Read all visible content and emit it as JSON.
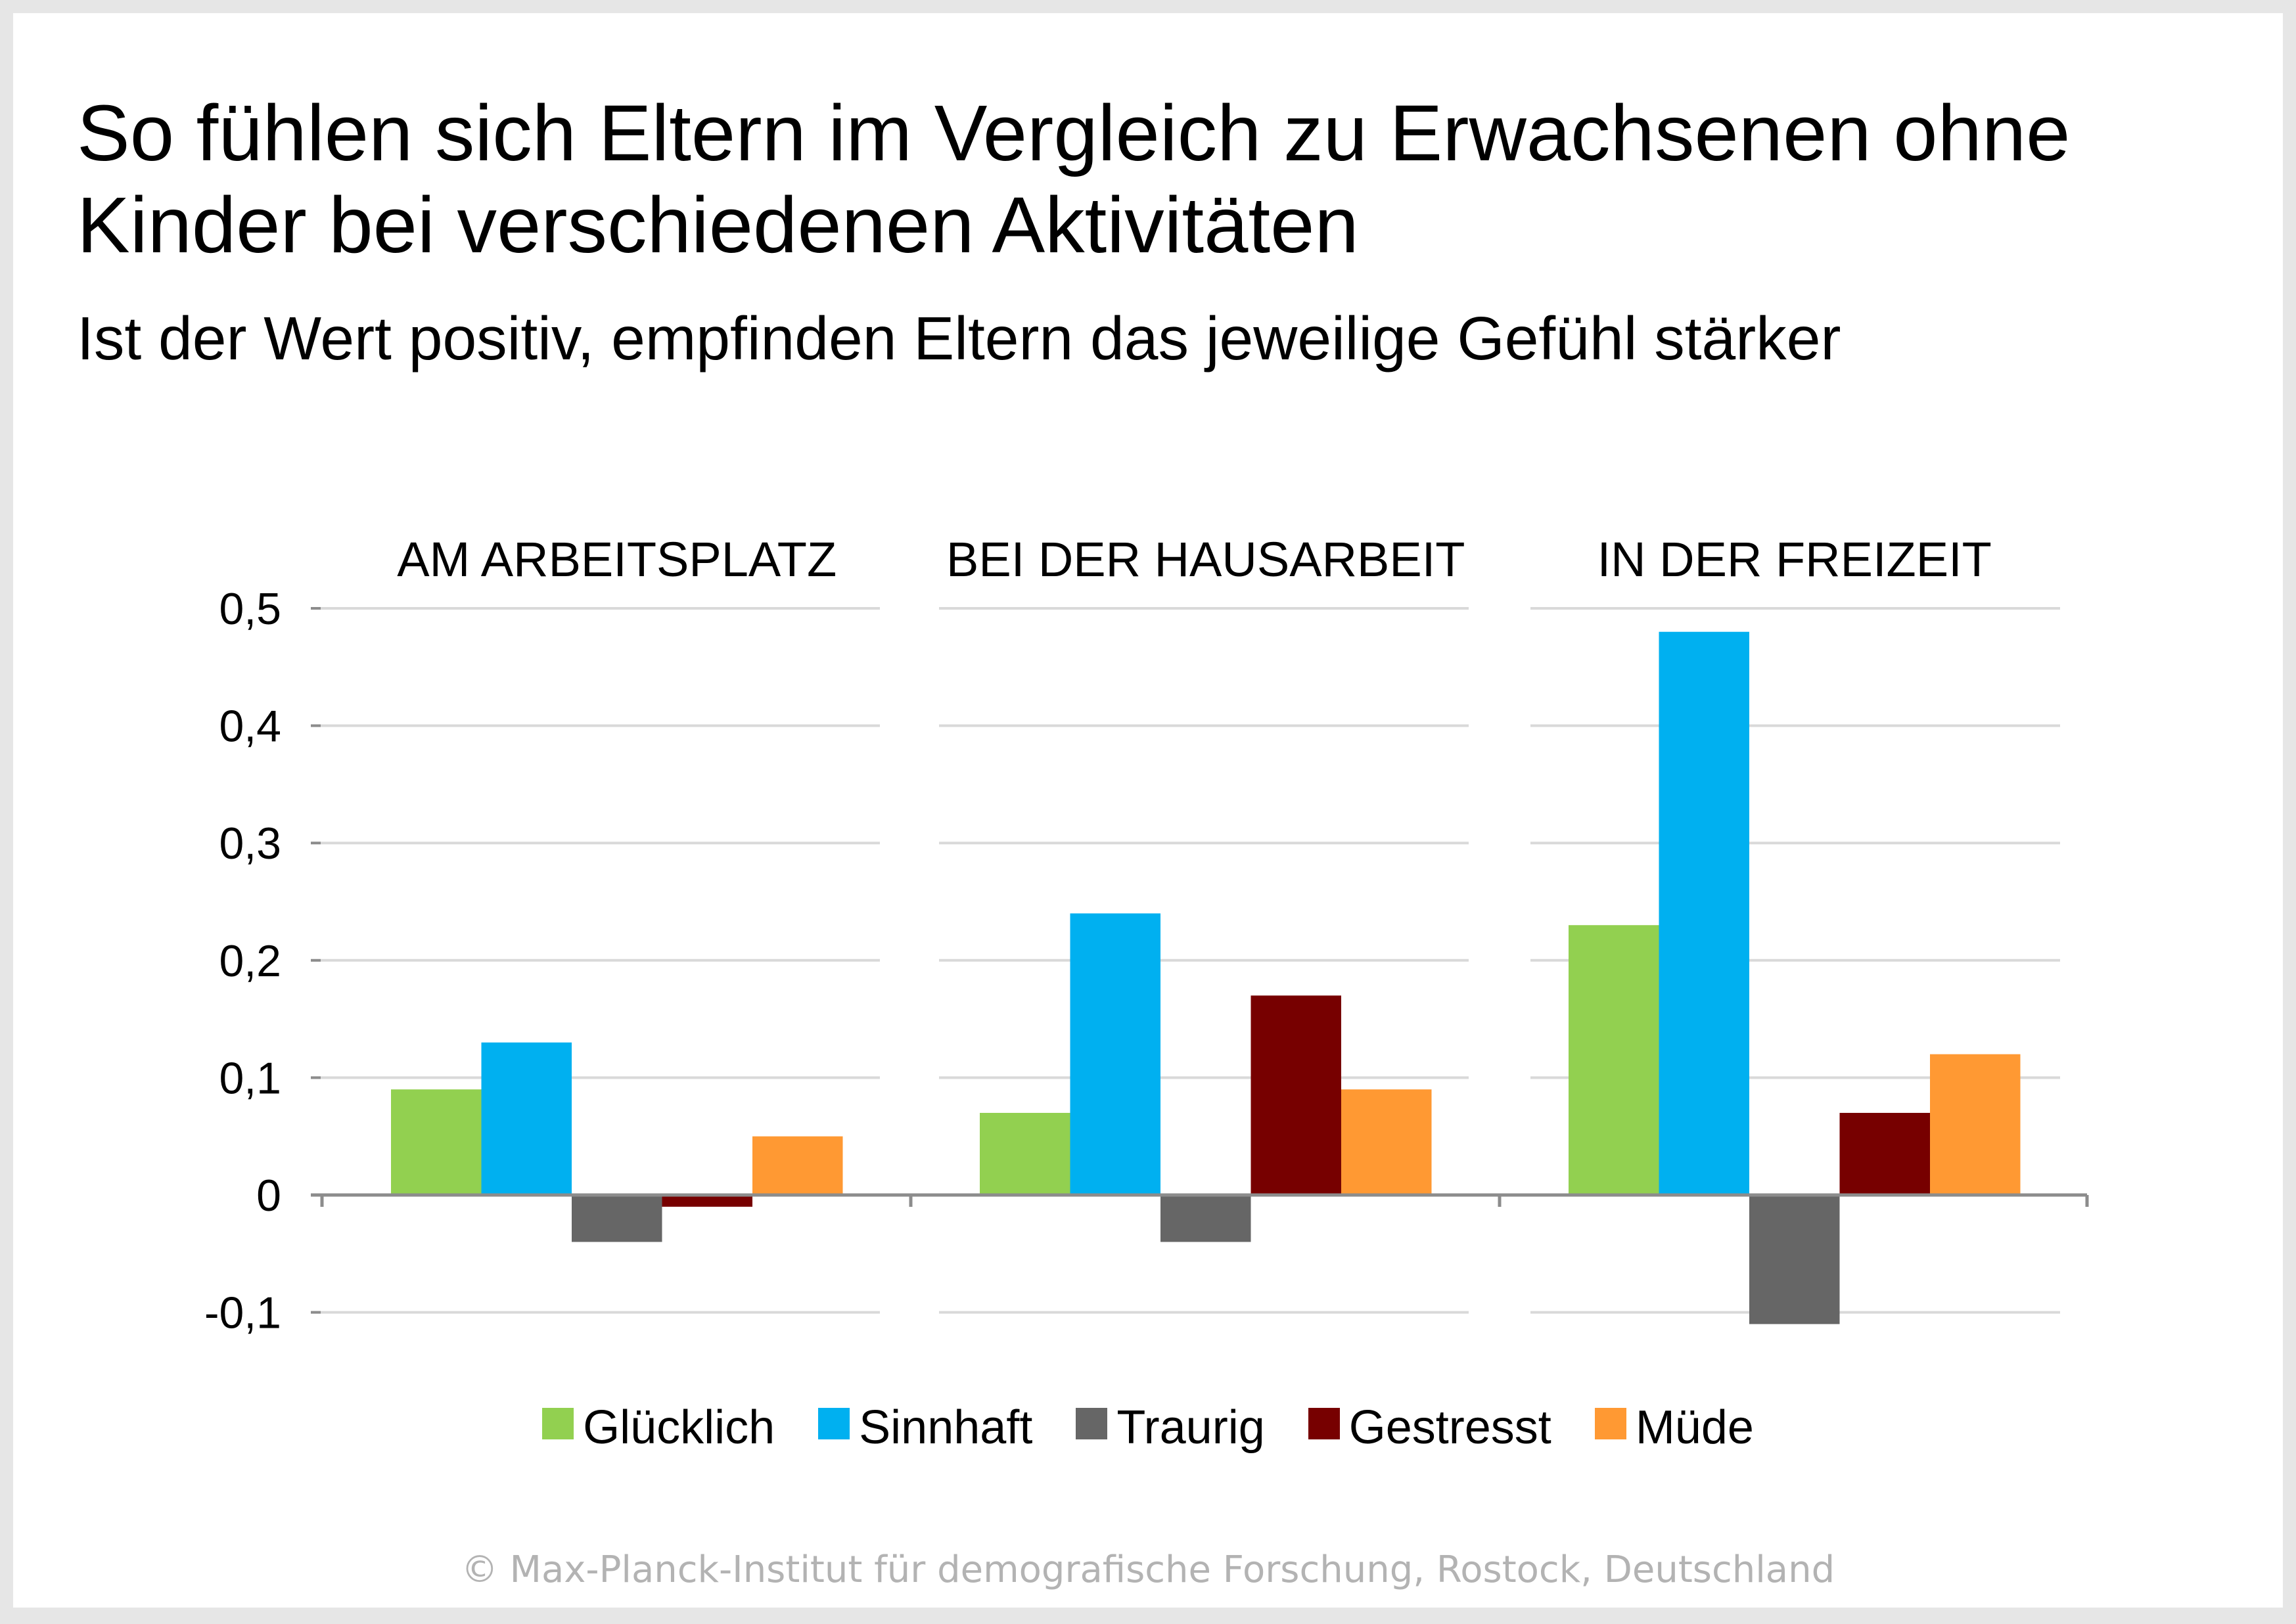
{
  "title_lines": [
    "So fühlen sich Eltern im Vergleich zu Erwachsenen ohne",
    "Kinder bei verschiedenen Aktivitäten"
  ],
  "subtitle": "Ist der Wert positiv, empfinden Eltern das jeweilige Gefühl stärker",
  "footer": "© Max-Planck-Institut für demografische Forschung, Rostock, Deutschland",
  "chart_data": {
    "type": "bar",
    "title": "So fühlen sich Eltern im Vergleich zu Erwachsenen ohne Kinder bei verschiedenen Aktivitäten",
    "subtitle": "Ist der Wert positiv, empfinden Eltern das jeweilige Gefühl stärker",
    "xlabel": "",
    "ylabel": "",
    "categories": [
      "AM ARBEITSPLATZ",
      "BEI DER HAUSARBEIT",
      "IN DER FREIZEIT"
    ],
    "series": [
      {
        "name": "Glücklich",
        "color": "#92D050",
        "values": [
          0.09,
          0.07,
          0.23
        ]
      },
      {
        "name": "Sinnhaft",
        "color": "#00B0F0",
        "values": [
          0.13,
          0.24,
          0.48
        ]
      },
      {
        "name": "Traurig",
        "color": "#666666",
        "values": [
          -0.04,
          -0.04,
          -0.11
        ]
      },
      {
        "name": "Gestresst",
        "color": "#770000",
        "values": [
          -0.01,
          0.17,
          0.07
        ]
      },
      {
        "name": "Müde",
        "color": "#FF9933",
        "values": [
          0.05,
          0.09,
          0.12
        ]
      }
    ],
    "ylim": [
      -0.1,
      0.5
    ],
    "yticks": [
      -0.1,
      0,
      0.1,
      0.2,
      0.3,
      0.4,
      0.5
    ],
    "ytick_labels": [
      "-0,1",
      "0",
      "0,1",
      "0,2",
      "0,3",
      "0,4",
      "0,5"
    ],
    "grid": true,
    "legend_position": "bottom"
  }
}
